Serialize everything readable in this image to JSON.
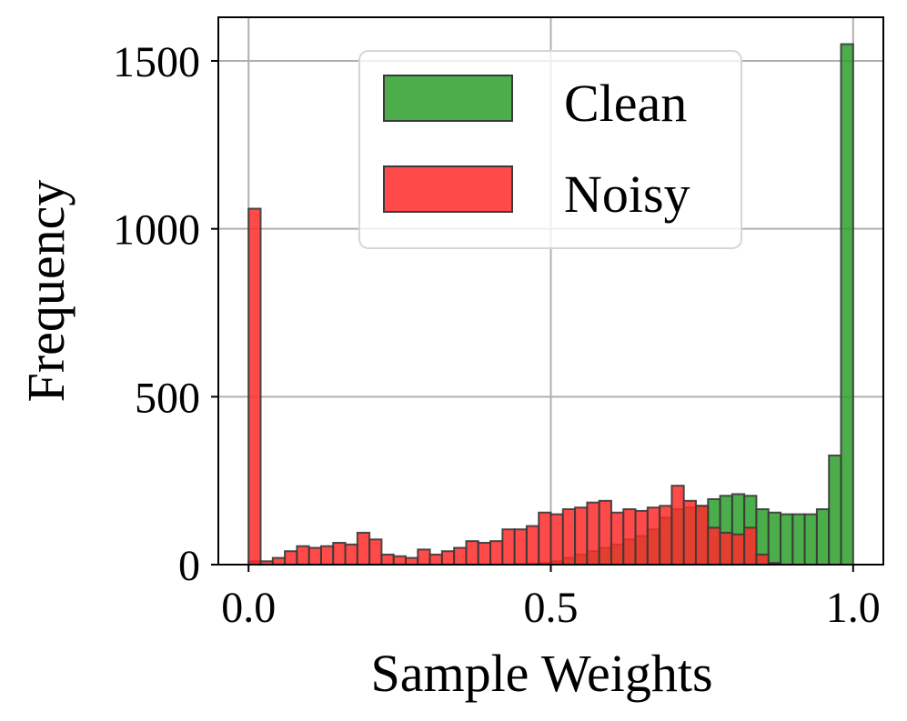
{
  "chart_data": {
    "type": "bar",
    "title": "",
    "xlabel": "Sample Weights",
    "ylabel": "Frequency",
    "xlim": [
      -0.05,
      1.05
    ],
    "ylim": [
      0,
      1630
    ],
    "xticks": [
      0.0,
      0.5,
      1.0
    ],
    "xtick_labels": [
      "0.0",
      "0.5",
      "1.0"
    ],
    "yticks": [
      0,
      500,
      1000,
      1500
    ],
    "ytick_labels": [
      "0",
      "500",
      "1000",
      "1500"
    ],
    "grid": true,
    "legend_position": "upper center",
    "bin_width": 0.02,
    "bin_start": 0.0,
    "series": [
      {
        "name": "Clean",
        "color": "#2ca02c",
        "values": [
          10,
          0,
          0,
          0,
          0,
          0,
          0,
          0,
          0,
          0,
          0,
          0,
          0,
          0,
          0,
          0,
          0,
          0,
          0,
          0,
          0,
          0,
          2,
          3,
          5,
          10,
          20,
          30,
          40,
          50,
          60,
          75,
          85,
          105,
          140,
          165,
          170,
          175,
          195,
          205,
          210,
          205,
          165,
          155,
          150,
          150,
          150,
          165,
          325,
          1550
        ]
      },
      {
        "name": "Noisy",
        "color": "#ff2a2a",
        "values": [
          1060,
          10,
          20,
          40,
          55,
          50,
          55,
          65,
          60,
          95,
          75,
          30,
          25,
          20,
          45,
          30,
          40,
          50,
          70,
          65,
          70,
          105,
          105,
          115,
          155,
          150,
          165,
          170,
          185,
          190,
          155,
          165,
          160,
          170,
          175,
          235,
          190,
          175,
          110,
          95,
          90,
          110,
          30,
          5,
          0,
          0,
          0,
          0,
          0,
          0
        ]
      }
    ]
  }
}
